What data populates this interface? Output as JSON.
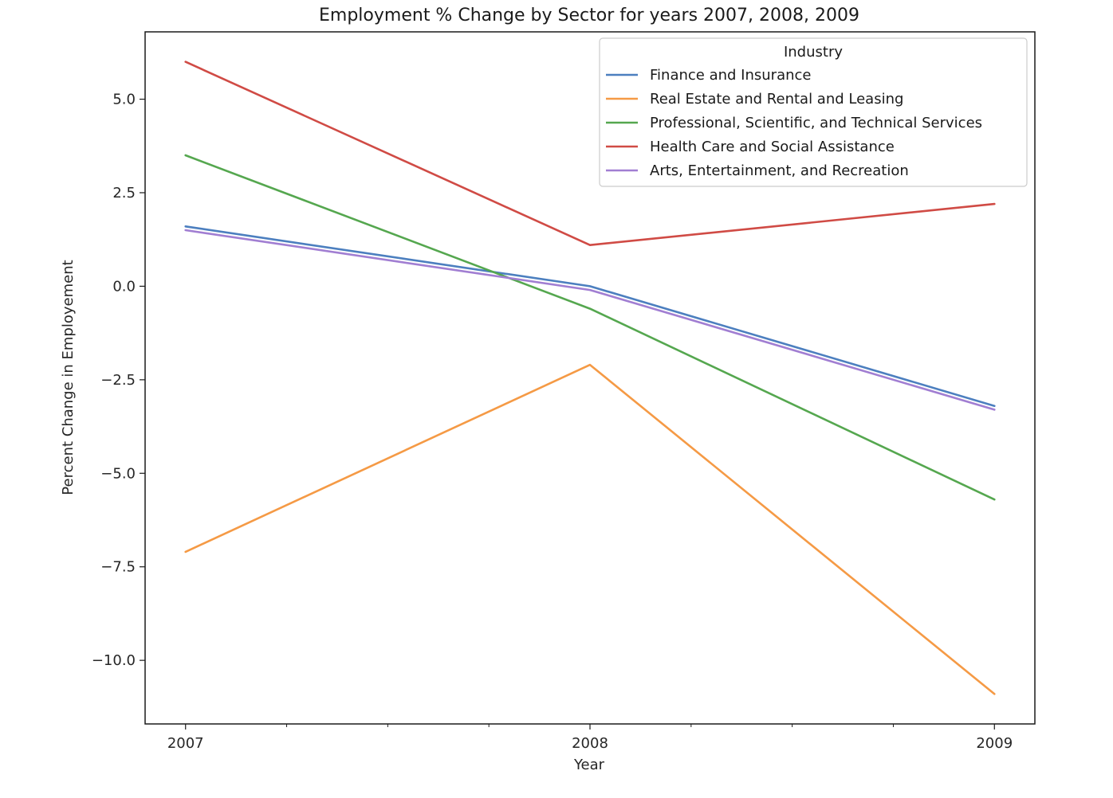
{
  "chart_data": {
    "type": "line",
    "title": "Employment % Change by Sector for years 2007, 2008, 2009",
    "xlabel": "Year",
    "ylabel": "Percent Change in Employement",
    "x": [
      2007,
      2008,
      2009
    ],
    "x_tick_labels": [
      "2007",
      "2008",
      "2009"
    ],
    "y_ticks": [
      5.0,
      2.5,
      0.0,
      -2.5,
      -5.0,
      -7.5,
      -10.0
    ],
    "y_tick_labels": [
      "5.0",
      "2.5",
      "0.0",
      "−2.5",
      "−5.0",
      "−7.5",
      "−10.0"
    ],
    "ylim": [
      -11.7,
      6.8
    ],
    "xlim": [
      2006.9,
      2009.1
    ],
    "grid": false,
    "legend": {
      "title": "Industry",
      "placement": "upper right"
    },
    "series": [
      {
        "name": "Finance and Insurance",
        "color": "#4c7fbf",
        "values": [
          1.6,
          0.0,
          -3.2
        ]
      },
      {
        "name": "Real Estate and Rental and Leasing",
        "color": "#f59a45",
        "values": [
          -7.1,
          -2.1,
          -10.9
        ]
      },
      {
        "name": "Professional, Scientific, and Technical Services",
        "color": "#55a74f",
        "values": [
          3.5,
          -0.6,
          -5.7
        ]
      },
      {
        "name": "Health Care and Social Assistance",
        "color": "#d04b45",
        "values": [
          6.0,
          1.1,
          2.2
        ]
      },
      {
        "name": "Arts, Entertainment, and Recreation",
        "color": "#a17ed2",
        "values": [
          1.5,
          -0.1,
          -3.3
        ]
      }
    ]
  }
}
